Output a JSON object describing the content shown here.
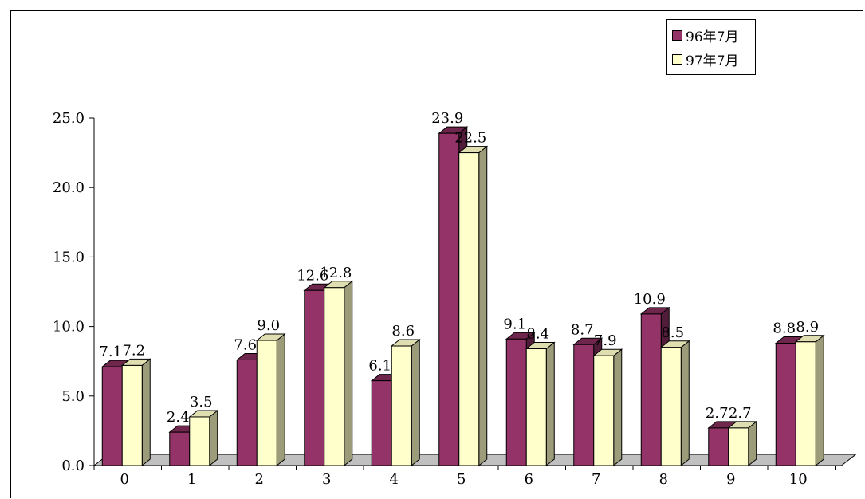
{
  "chart_data": {
    "type": "bar",
    "categories": [
      "0",
      "1",
      "2",
      "3",
      "4",
      "5",
      "6",
      "7",
      "8",
      "9",
      "10"
    ],
    "series": [
      {
        "name": "96年7月",
        "color": "#943367",
        "values": [
          7.1,
          2.4,
          7.6,
          12.6,
          6.1,
          23.9,
          9.1,
          8.7,
          10.9,
          2.7,
          8.8
        ]
      },
      {
        "name": "97年7月",
        "color": "#FFFFCC",
        "values": [
          7.2,
          3.5,
          9.0,
          12.8,
          8.6,
          22.5,
          8.4,
          7.9,
          8.5,
          2.7,
          8.9
        ]
      }
    ],
    "data_labels": [
      [
        "7.1",
        "2.4",
        "7.6",
        "12.6",
        "6.1",
        "23.9",
        "9.1",
        "8.7",
        "10.9",
        "2.7",
        "8.8"
      ],
      [
        "7.2",
        "3.5",
        "9.0",
        "12.8",
        "8.6",
        "22.5",
        "8.4",
        "7.9",
        "8.5",
        "2.7",
        "8.9"
      ]
    ],
    "yticks": [
      "0.0",
      "5.0",
      "10.0",
      "15.0",
      "20.0",
      "25.0"
    ],
    "ylim": [
      0,
      25
    ],
    "title": "",
    "xlabel": "",
    "ylabel": "",
    "legend_position": "top-right",
    "grid": false,
    "floor_color": "#C0C0C0"
  }
}
